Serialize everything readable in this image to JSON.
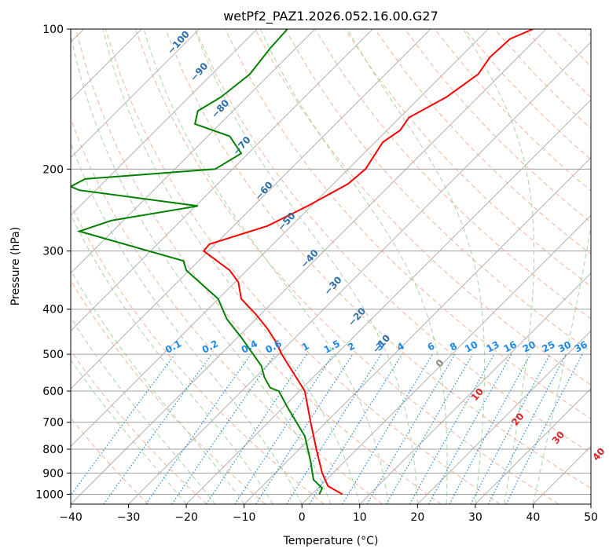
{
  "chart_data": {
    "type": "line",
    "title": "wetPf2_PAZ1.2026.052.16.00.G27",
    "xlabel": "Temperature (°C)",
    "ylabel": "Pressure (hPa)",
    "xlim": [
      -40,
      50
    ],
    "ylim": [
      1050,
      100
    ],
    "y_scale": "log",
    "x_ticks": [
      "−40",
      "−30",
      "−20",
      "−10",
      "0",
      "10",
      "20",
      "30",
      "40",
      "50"
    ],
    "y_ticks": [
      "1000",
      "900",
      "800",
      "700",
      "600",
      "500",
      "400",
      "300",
      "200",
      "100"
    ],
    "y_tick_values": [
      1000,
      900,
      800,
      700,
      600,
      500,
      400,
      300,
      200,
      100
    ],
    "grid": true,
    "series": [
      {
        "color": "#ff0000",
        "x": [
          7.0,
          4.5,
          3.5,
          2.5,
          1.5,
          0.5,
          -3.5,
          -4.5,
          -6.0,
          -8.0,
          -10.5,
          -11.0,
          -12.5,
          -17.0,
          -16.0,
          -6.0,
          1.0,
          8.0,
          11.0,
          14.0,
          17.0,
          18.5,
          25.0,
          30.5,
          32.5,
          36.0,
          40.0
        ],
        "y": [
          1000,
          960,
          900,
          800,
          700,
          600,
          500,
          470,
          440,
          410,
          380,
          350,
          330,
          300,
          290,
          265,
          240,
          215,
          200,
          175,
          165,
          155,
          140,
          125,
          115,
          105,
          100
        ]
      },
      {
        "color": "#008000",
        "x": [
          3.0,
          3.5,
          2.0,
          1.5,
          0.5,
          -2.5,
          -4.0,
          -5.5,
          -6.5,
          -7.0,
          -10.5,
          -13.0,
          -14.5,
          -20.0,
          -20.5,
          -38.5,
          -33.0,
          -18.0,
          -38.5,
          -40.0,
          -37.5,
          -15.0,
          -10.5,
          -12.5,
          -18.5,
          -18.0,
          -14.0,
          -9.0,
          -5.5,
          -2.5
        ],
        "y": [
          1000,
          970,
          930,
          850,
          750,
          650,
          600,
          590,
          560,
          530,
          460,
          420,
          380,
          330,
          315,
          272,
          258,
          240,
          222,
          218,
          210,
          200,
          185,
          170,
          160,
          150,
          140,
          125,
          110,
          100
        ]
      }
    ],
    "mixing_ratio_labels": [
      "0.1",
      "0.2",
      "0.4",
      "0.6",
      "1",
      "1.5",
      "2",
      "3",
      "4",
      "6",
      "8",
      "10",
      "13",
      "16",
      "20",
      "25",
      "30",
      "36"
    ],
    "dry_adiabat_labels": [
      "−100",
      "−90",
      "−80",
      "−70",
      "−60",
      "−50",
      "−40",
      "−30",
      "−20",
      "−10"
    ],
    "moist_adiabat_labels": [
      "0",
      "10",
      "20",
      "30",
      "40"
    ],
    "colors": {
      "temperature": "#ff0000",
      "dewpoint": "#008000",
      "isotherm": "#a0a0a0",
      "dry_adiabat": "#f8a07c",
      "moist_adiabat": "#8fce8f",
      "mixing_ratio": "#1e88e5"
    }
  }
}
